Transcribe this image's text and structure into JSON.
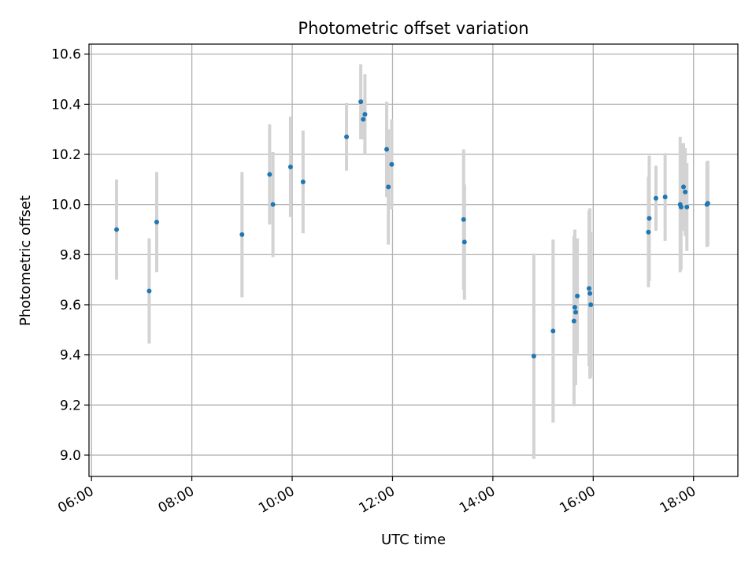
{
  "chart_data": {
    "type": "scatter",
    "title": "Photometric offset variation",
    "xlabel": "UTC time",
    "ylabel": "Photometric offset",
    "x_axis": "time",
    "xlim": [
      "05:57",
      "18:53"
    ],
    "ylim": [
      8.915,
      10.64
    ],
    "x_ticks": [
      "06:00",
      "08:00",
      "10:00",
      "12:00",
      "14:00",
      "16:00",
      "18:00"
    ],
    "y_ticks": [
      "9.0",
      "9.2",
      "9.4",
      "9.6",
      "9.8",
      "10.0",
      "10.2",
      "10.4",
      "10.6"
    ],
    "grid": true,
    "legend": "none",
    "colors": {
      "points": "#1f77b4",
      "error_bars": "#d3d3d3",
      "grid": "#b0b0b0"
    },
    "series": [
      {
        "points": [
          {
            "x": "06:30",
            "y": 9.9,
            "yerr": 0.2
          },
          {
            "x": "07:09",
            "y": 9.655,
            "yerr": 0.21
          },
          {
            "x": "07:18",
            "y": 9.93,
            "yerr": 0.2
          },
          {
            "x": "09:00",
            "y": 9.88,
            "yerr": 0.25
          },
          {
            "x": "09:33",
            "y": 10.12,
            "yerr": 0.2
          },
          {
            "x": "09:37",
            "y": 10.0,
            "yerr": 0.21
          },
          {
            "x": "09:58",
            "y": 10.15,
            "yerr": 0.2
          },
          {
            "x": "10:13",
            "y": 10.09,
            "yerr": 0.205
          },
          {
            "x": "11:05",
            "y": 10.27,
            "yerr": 0.135
          },
          {
            "x": "11:22",
            "y": 10.41,
            "yerr": 0.15
          },
          {
            "x": "11:25",
            "y": 10.34,
            "yerr": 0.08
          },
          {
            "x": "11:27",
            "y": 10.36,
            "yerr": 0.16
          },
          {
            "x": "11:53",
            "y": 10.22,
            "yerr": 0.19
          },
          {
            "x": "11:55",
            "y": 10.07,
            "yerr": 0.23
          },
          {
            "x": "11:59",
            "y": 10.16,
            "yerr": 0.18
          },
          {
            "x": "13:25",
            "y": 9.94,
            "yerr": 0.28
          },
          {
            "x": "13:26",
            "y": 9.85,
            "yerr": 0.23
          },
          {
            "x": "14:49",
            "y": 9.395,
            "yerr": 0.41
          },
          {
            "x": "15:12",
            "y": 9.495,
            "yerr": 0.365
          },
          {
            "x": "15:37",
            "y": 9.535,
            "yerr": 0.34
          },
          {
            "x": "15:38",
            "y": 9.59,
            "yerr": 0.31
          },
          {
            "x": "15:39",
            "y": 9.57,
            "yerr": 0.29
          },
          {
            "x": "15:41",
            "y": 9.635,
            "yerr": 0.23
          },
          {
            "x": "15:55",
            "y": 9.665,
            "yerr": 0.31
          },
          {
            "x": "15:56",
            "y": 9.645,
            "yerr": 0.34
          },
          {
            "x": "15:57",
            "y": 9.6,
            "yerr": 0.29
          },
          {
            "x": "17:06",
            "y": 9.89,
            "yerr": 0.22
          },
          {
            "x": "17:07",
            "y": 9.945,
            "yerr": 0.25
          },
          {
            "x": "17:15",
            "y": 10.025,
            "yerr": 0.13
          },
          {
            "x": "17:26",
            "y": 10.03,
            "yerr": 0.175
          },
          {
            "x": "17:44",
            "y": 10.0,
            "yerr": 0.27
          },
          {
            "x": "17:45",
            "y": 9.99,
            "yerr": 0.25
          },
          {
            "x": "17:48",
            "y": 10.07,
            "yerr": 0.175
          },
          {
            "x": "17:50",
            "y": 10.05,
            "yerr": 0.175
          },
          {
            "x": "17:52",
            "y": 9.99,
            "yerr": 0.175
          },
          {
            "x": "18:16",
            "y": 10.0,
            "yerr": 0.17
          },
          {
            "x": "18:17",
            "y": 10.005,
            "yerr": 0.17
          }
        ]
      }
    ]
  }
}
